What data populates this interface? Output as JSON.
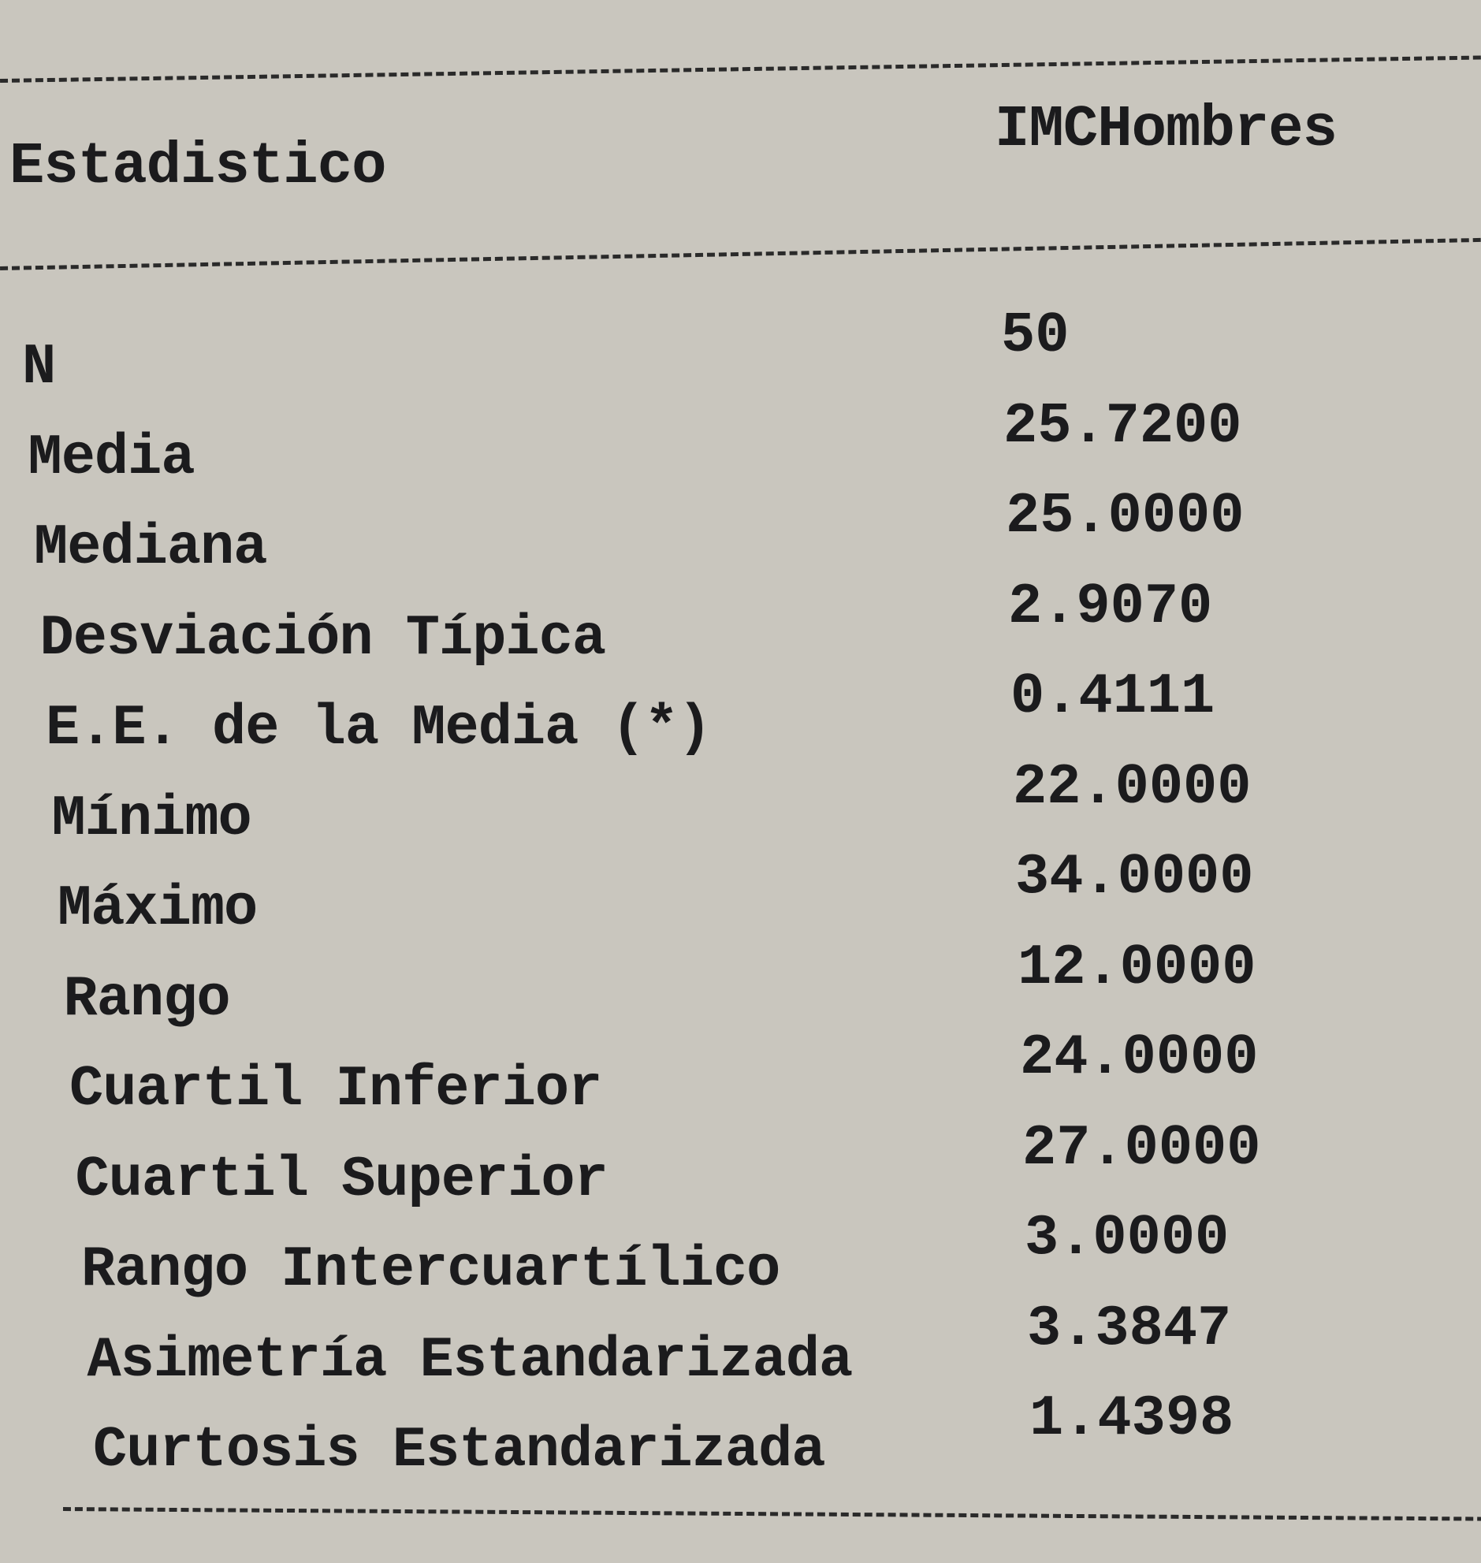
{
  "table": {
    "header": {
      "statistic": "Estadistico",
      "variable": "IMCHombres"
    },
    "rows": [
      {
        "label": "N",
        "value": "50"
      },
      {
        "label": "Media",
        "value": "25.7200"
      },
      {
        "label": "Mediana",
        "value": "25.0000"
      },
      {
        "label": "Desviación Típica",
        "value": "2.9070"
      },
      {
        "label": "E.E. de la Media (*)",
        "value": "0.4111"
      },
      {
        "label": "Mínimo",
        "value": "22.0000"
      },
      {
        "label": "Máximo",
        "value": "34.0000"
      },
      {
        "label": "Rango",
        "value": "12.0000"
      },
      {
        "label": "Cuartil Inferior",
        "value": "24.0000"
      },
      {
        "label": "Cuartil Superior",
        "value": "27.0000"
      },
      {
        "label": "Rango Intercuartílico",
        "value": "3.0000"
      },
      {
        "label": "Asimetría Estandarizada",
        "value": "3.3847"
      },
      {
        "label": "Curtosis Estandarizada",
        "value": "1.4398"
      }
    ]
  }
}
